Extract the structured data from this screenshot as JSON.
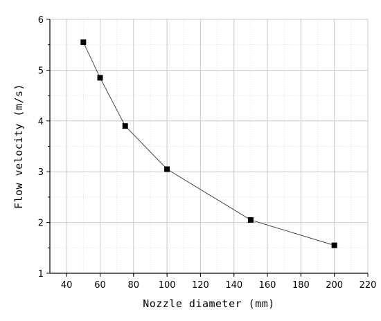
{
  "chart_data": {
    "type": "line",
    "title": "",
    "xlabel": "Nozzle diameter (mm)",
    "ylabel": "Flow velocity (m/s)",
    "xlim": [
      30,
      220
    ],
    "ylim": [
      1,
      6
    ],
    "xticks": [
      40,
      60,
      80,
      100,
      120,
      140,
      160,
      180,
      200,
      220
    ],
    "yticks": [
      1,
      2,
      3,
      4,
      5,
      6
    ],
    "grid": true,
    "marker": "square",
    "colors": {
      "line": "#444444",
      "marker": "#000000",
      "grid": "#c8c8c8",
      "axis": "#000000"
    },
    "series": [
      {
        "x": [
          50,
          60,
          75,
          100,
          150,
          200
        ],
        "y": [
          5.55,
          4.85,
          3.9,
          3.05,
          2.05,
          1.55
        ]
      }
    ]
  }
}
